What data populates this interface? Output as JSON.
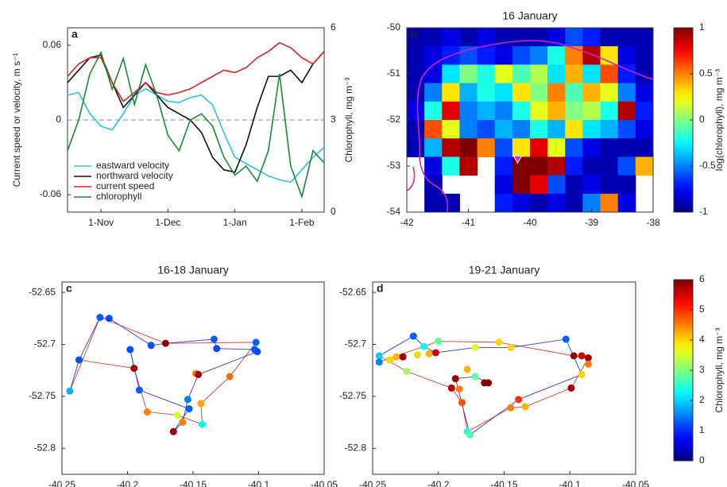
{
  "chart_data": [
    {
      "type": "line",
      "panel": "a",
      "ylabel": "Current speed or velocity, m s⁻¹",
      "y2label": "Chlorophyll, mg m⁻³",
      "categories": [
        null,
        null,
        null,
        "1-Nov",
        null,
        null,
        null,
        null,
        null,
        "1-Dec",
        null,
        null,
        null,
        null,
        null,
        "1-Jan",
        null,
        null,
        null,
        null,
        null,
        "1-Feb",
        null,
        null
      ],
      "ylim": [
        -0.074,
        0.074
      ],
      "yticks": [
        -0.06,
        0,
        0.06
      ],
      "y2lim": [
        0,
        6
      ],
      "y2ticks": [
        0,
        3,
        6
      ],
      "zero_line": true,
      "series": [
        {
          "name": "eastward velocity",
          "color": "#22c8e0",
          "values": [
            0.02,
            0.022,
            0.005,
            -0.005,
            -0.008,
            0.005,
            0.02,
            0.025,
            0.02,
            0.015,
            0.014,
            0.018,
            0.02,
            0.012,
            -0.01,
            -0.03,
            -0.035,
            -0.04,
            -0.045,
            -0.048,
            -0.05,
            -0.04,
            -0.03,
            -0.022
          ]
        },
        {
          "name": "northward velocity",
          "color": "#111111",
          "values": [
            0.03,
            0.04,
            0.05,
            0.052,
            0.03,
            0.01,
            0.02,
            0.03,
            0.02,
            0.01,
            0.005,
            0.0,
            -0.01,
            -0.03,
            -0.04,
            -0.042,
            -0.02,
            0.01,
            0.035,
            0.035,
            0.04,
            0.03,
            0.045,
            0.055
          ]
        },
        {
          "name": "current speed",
          "color": "#e02020",
          "values": [
            0.035,
            0.045,
            0.05,
            0.05,
            0.03,
            0.015,
            0.022,
            0.03,
            0.022,
            0.02,
            0.022,
            0.025,
            0.03,
            0.035,
            0.04,
            0.038,
            0.042,
            0.05,
            0.055,
            0.062,
            0.058,
            0.05,
            0.045,
            0.055
          ]
        },
        {
          "name": "chlorophyll",
          "color": "#1a8a3a",
          "axis": "y2",
          "values": [
            2,
            3,
            4.5,
            5.2,
            4,
            5,
            3.5,
            4.8,
            3.8,
            2.5,
            2,
            3,
            3.2,
            2.8,
            1.8,
            1.2,
            1.5,
            1,
            2,
            4.5,
            1.5,
            0.5,
            2,
            1.6
          ]
        }
      ]
    },
    {
      "type": "heatmap",
      "panel": "b",
      "title": "16 January",
      "xlim": [
        -42,
        -38
      ],
      "xticks": [
        -42,
        -41,
        -40,
        -39,
        -38
      ],
      "ylim": [
        -54,
        -50
      ],
      "yticks": [
        -54,
        -53,
        -52,
        -51,
        -50
      ],
      "clim": [
        -1,
        1
      ],
      "cticks": [
        -1,
        -0.5,
        0,
        0.5,
        1
      ],
      "clabel": "log(chlorophyll), mg m⁻³",
      "marker": {
        "x": -40.2,
        "y": -52.85,
        "color": "#e020c0"
      },
      "z": [
        [
          -0.9,
          -0.9,
          -0.8,
          -0.9,
          -0.8,
          -0.9,
          -0.9,
          -0.9,
          -0.8,
          -0.6,
          -0.7,
          -0.9,
          -0.9,
          -0.9
        ],
        [
          -0.9,
          -0.8,
          -0.7,
          -0.6,
          -0.7,
          -0.8,
          -0.6,
          -0.5,
          -0.2,
          0.5,
          0.9,
          0.3,
          -0.8,
          -0.9
        ],
        [
          -0.9,
          -0.8,
          -0.3,
          0.0,
          -0.2,
          0.2,
          -0.1,
          0.1,
          -0.3,
          0.4,
          -0.3,
          0.6,
          -0.7,
          -0.9
        ],
        [
          -0.9,
          -0.5,
          0.3,
          -0.4,
          -0.2,
          -0.3,
          0.3,
          0.0,
          0.5,
          -0.1,
          0.4,
          0.2,
          -0.5,
          -0.8
        ],
        [
          -0.8,
          -0.2,
          0.8,
          -0.5,
          -0.4,
          -0.5,
          -0.2,
          0.2,
          0.4,
          0.0,
          0.1,
          -0.2,
          0.9,
          -0.7
        ],
        [
          -0.9,
          0.6,
          0.2,
          -0.5,
          -0.6,
          -0.4,
          -0.5,
          -0.2,
          -0.4,
          0.3,
          -0.3,
          -0.4,
          -0.6,
          -0.8
        ],
        [
          -0.9,
          -0.4,
          0.9,
          1.0,
          0.5,
          -0.6,
          0.3,
          0.8,
          0.2,
          -0.6,
          -0.8,
          -0.9,
          -0.9,
          -0.9
        ],
        [
          null,
          -0.8,
          -0.2,
          0.9,
          null,
          -0.7,
          1.0,
          1.0,
          0.9,
          -0.7,
          -0.9,
          -0.9,
          -0.6,
          0.4
        ],
        [
          null,
          -0.9,
          null,
          null,
          null,
          -0.8,
          1.0,
          0.8,
          -0.6,
          -0.9,
          -0.8,
          -0.9,
          -0.9,
          null
        ],
        [
          null,
          -0.9,
          -0.9,
          null,
          null,
          -0.7,
          -0.8,
          -0.9,
          -0.8,
          -0.9,
          -0.5,
          0.5,
          -0.8,
          null
        ]
      ]
    },
    {
      "type": "scatter",
      "panel": "c",
      "title": "16-18 January",
      "xlim": [
        -40.25,
        -40.05
      ],
      "xticks": [
        -40.25,
        -40.2,
        -40.15,
        -40.1,
        -40.05
      ],
      "ylim": [
        -52.825,
        -52.64
      ],
      "yticks": [
        -52.8,
        -52.75,
        -52.7,
        -52.65
      ],
      "clim": [
        0,
        6
      ],
      "tracks": [
        {
          "color": "#e03a2a",
          "x": [
            -40.244,
            -40.221,
            -40.171,
            -40.102,
            -40.122,
            -40.144,
            -40.143,
            -40.162,
            -40.185,
            -40.195,
            -40.237
          ],
          "y": [
            -52.745,
            -52.674,
            -52.699,
            -52.698,
            -52.731,
            -52.757,
            -52.777,
            -52.768,
            -52.765,
            -52.723,
            -52.715
          ]
        },
        {
          "color": "#2a3ad0",
          "x": [
            -40.244,
            -40.237,
            -40.221,
            -40.214,
            -40.182,
            -40.171,
            -40.134,
            -40.132,
            -40.103,
            -40.101,
            -40.146,
            -40.154,
            -40.158,
            -40.165,
            -40.153,
            -40.191,
            -40.198,
            -40.195
          ],
          "y": [
            -52.745,
            -52.715,
            -52.674,
            -52.675,
            -52.701,
            -52.699,
            -52.695,
            -52.704,
            -52.705,
            -52.707,
            -52.729,
            -52.753,
            -52.775,
            -52.784,
            -52.762,
            -52.744,
            -52.705,
            -52.723
          ]
        }
      ],
      "points": {
        "x": [
          -40.244,
          -40.237,
          -40.221,
          -40.214,
          -40.198,
          -40.195,
          -40.191,
          -40.185,
          -40.182,
          -40.171,
          -40.165,
          -40.162,
          -40.158,
          -40.154,
          -40.153,
          -40.148,
          -40.146,
          -40.144,
          -40.143,
          -40.134,
          -40.132,
          -40.122,
          -40.103,
          -40.102,
          -40.101
        ],
        "y": [
          -52.745,
          -52.715,
          -52.674,
          -52.675,
          -52.705,
          -52.723,
          -52.744,
          -52.765,
          -52.701,
          -52.699,
          -52.784,
          -52.768,
          -52.775,
          -52.753,
          -52.762,
          -52.728,
          -52.729,
          -52.757,
          -52.777,
          -52.695,
          -52.704,
          -52.731,
          -52.705,
          -52.698,
          -52.707
        ],
        "c": [
          1.8,
          1.2,
          1.3,
          1.2,
          1.2,
          5.8,
          1.3,
          4.5,
          1.2,
          5.9,
          5.8,
          3.5,
          4.5,
          1.5,
          1.3,
          4.5,
          5.8,
          4.3,
          2.2,
          1.3,
          1.2,
          4.6,
          1.3,
          1.3,
          1.2
        ]
      }
    },
    {
      "type": "scatter",
      "panel": "d",
      "title": "19-21 January",
      "xlim": [
        -40.25,
        -40.05
      ],
      "xticks": [
        -40.25,
        -40.2,
        -40.15,
        -40.1,
        -40.05
      ],
      "ylim": [
        -52.825,
        -52.64
      ],
      "yticks": [
        -52.8,
        -52.75,
        -52.7,
        -52.65
      ],
      "clim": [
        0,
        6
      ],
      "cticks": [
        0,
        1,
        2,
        3,
        4,
        5,
        6
      ],
      "clabel": "Chlorophyll, mg m⁻³",
      "tracks": [
        {
          "color": "#e03a2a",
          "x": [
            -40.245,
            -40.224,
            -40.19,
            -40.182,
            -40.178,
            -40.145,
            -40.134,
            -40.099,
            -40.086,
            -40.097,
            -40.154,
            -40.2,
            -40.245
          ],
          "y": [
            -52.711,
            -52.726,
            -52.742,
            -52.756,
            -52.784,
            -52.761,
            -52.76,
            -52.742,
            -52.713,
            -52.711,
            -52.698,
            -52.697,
            -52.717
          ]
        },
        {
          "color": "#2a3ad0",
          "x": [
            -40.245,
            -40.219,
            -40.211,
            -40.202,
            -40.172,
            -40.145,
            -40.103,
            -40.091,
            -40.139,
            -40.176,
            -40.187,
            -40.172,
            -40.162
          ],
          "y": [
            -52.711,
            -52.692,
            -52.702,
            -52.708,
            -52.703,
            -52.703,
            -52.695,
            -52.729,
            -52.753,
            -52.787,
            -52.733,
            -52.731,
            -52.737
          ]
        }
      ],
      "points": {
        "x": [
          -40.245,
          -40.245,
          -40.237,
          -40.232,
          -40.227,
          -40.224,
          -40.219,
          -40.216,
          -40.211,
          -40.207,
          -40.202,
          -40.2,
          -40.19,
          -40.187,
          -40.184,
          -40.182,
          -40.178,
          -40.172,
          -40.172,
          -40.165,
          -40.162,
          -40.154,
          -40.145,
          -40.145,
          -40.139,
          -40.134,
          -40.178,
          -40.176,
          -40.103,
          -40.097,
          -40.091,
          -40.086,
          -40.086,
          -40.099,
          -40.091
        ],
        "y": [
          -52.711,
          -52.717,
          -52.715,
          -52.712,
          -52.712,
          -52.726,
          -52.692,
          -52.71,
          -52.702,
          -52.709,
          -52.708,
          -52.697,
          -52.742,
          -52.733,
          -52.743,
          -52.756,
          -52.724,
          -52.731,
          -52.703,
          -52.737,
          -52.737,
          -52.698,
          -52.703,
          -52.761,
          -52.753,
          -52.76,
          -52.784,
          -52.787,
          -52.695,
          -52.711,
          -52.711,
          -52.713,
          -52.719,
          -52.742,
          -52.729
        ],
        "c": [
          2.0,
          1.5,
          4.0,
          4.2,
          5.8,
          3.2,
          1.3,
          4.0,
          2.3,
          4.2,
          5.5,
          2.8,
          5.7,
          5.8,
          4.5,
          4.8,
          4.2,
          2.8,
          3.5,
          5.9,
          6.0,
          4.0,
          4.0,
          4.5,
          5.0,
          4.2,
          2.5,
          2.7,
          1.3,
          5.9,
          5.5,
          5.8,
          4.5,
          5.8,
          4.0
        ]
      }
    }
  ]
}
